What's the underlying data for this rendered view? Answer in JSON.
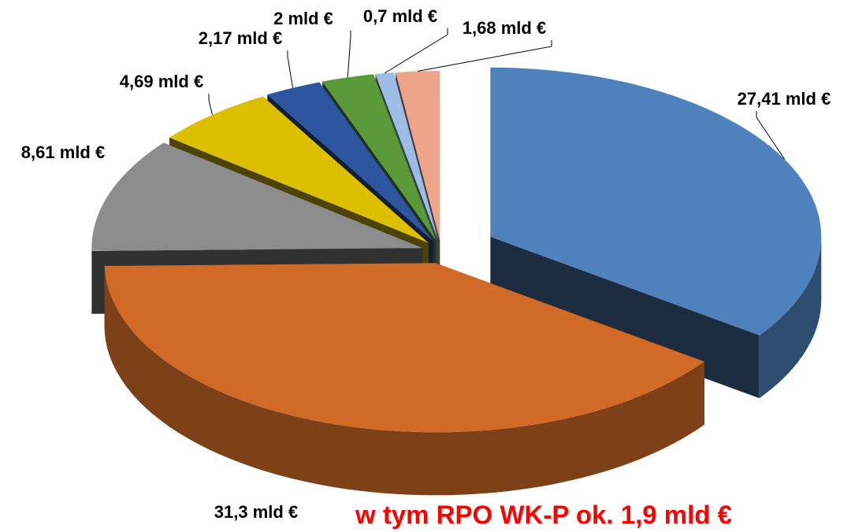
{
  "chart_data": {
    "type": "pie3d",
    "values": [
      27.41,
      31.3,
      8.61,
      4.69,
      2.17,
      2,
      0.7,
      1.68
    ],
    "value_labels": [
      "27,41 mld €",
      "31,3 mld €",
      "8,61 mld €",
      "4,69 mld €",
      "2,17 mld €",
      "2 mld €",
      "0,7 mld €",
      "1,68 mld €"
    ],
    "colors": [
      "#4f81bd",
      "#d06a26",
      "#8c8c8c",
      "#dcc000",
      "#2e56a0",
      "#5a9a3a",
      "#9dbde6",
      "#eda58a"
    ],
    "annotation": "w tym RPO WK-P ok. 1,9 mld €"
  }
}
